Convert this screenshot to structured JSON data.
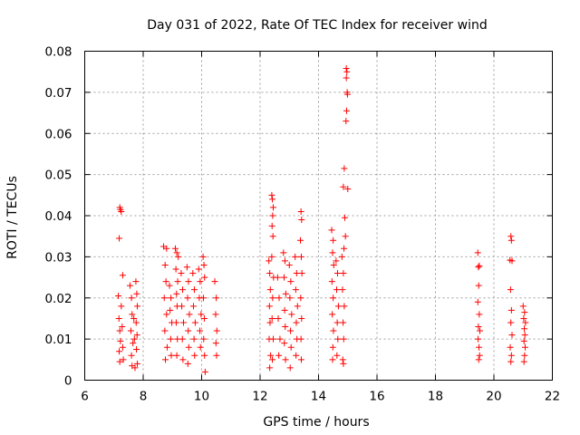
{
  "chart_data": {
    "type": "scatter",
    "title": "Day 031 of 2022, Rate Of TEC Index for receiver wind",
    "xlabel": "GPS time / hours",
    "ylabel": "ROTI / TECUs",
    "xlim": [
      6,
      22
    ],
    "ylim": [
      0,
      0.08
    ],
    "x_ticks": [
      6,
      8,
      10,
      12,
      14,
      16,
      18,
      20,
      22
    ],
    "x_tick_labels": [
      "6",
      "8",
      "10",
      "12",
      "14",
      "16",
      "18",
      "20",
      "22"
    ],
    "y_ticks": [
      0,
      0.01,
      0.02,
      0.03,
      0.04,
      0.05,
      0.06,
      0.07,
      0.08
    ],
    "y_tick_labels": [
      "0",
      "0.01",
      "0.02",
      "0.03",
      "0.04",
      "0.05",
      "0.06",
      "0.07",
      "0.08"
    ],
    "grid": true,
    "marker": "+",
    "color": "#ff0000",
    "series": [
      {
        "name": "ROTI",
        "points": [
          [
            7.2,
            0.042
          ],
          [
            7.22,
            0.0415
          ],
          [
            7.25,
            0.041
          ],
          [
            7.18,
            0.0345
          ],
          [
            7.3,
            0.0255
          ],
          [
            7.15,
            0.0205
          ],
          [
            7.17,
            0.015
          ],
          [
            7.2,
            0.012
          ],
          [
            7.22,
            0.0095
          ],
          [
            7.18,
            0.007
          ],
          [
            7.2,
            0.0045
          ],
          [
            7.25,
            0.018
          ],
          [
            7.28,
            0.013
          ],
          [
            7.3,
            0.008
          ],
          [
            7.32,
            0.005
          ],
          [
            7.55,
            0.023
          ],
          [
            7.6,
            0.02
          ],
          [
            7.62,
            0.016
          ],
          [
            7.58,
            0.012
          ],
          [
            7.65,
            0.009
          ],
          [
            7.6,
            0.006
          ],
          [
            7.62,
            0.0035
          ],
          [
            7.75,
            0.024
          ],
          [
            7.78,
            0.021
          ],
          [
            7.8,
            0.018
          ],
          [
            7.76,
            0.014
          ],
          [
            7.79,
            0.011
          ],
          [
            7.77,
            0.0075
          ],
          [
            7.8,
            0.004
          ],
          [
            7.68,
            0.015
          ],
          [
            7.7,
            0.01
          ],
          [
            7.72,
            0.003
          ],
          [
            8.7,
            0.0325
          ],
          [
            8.8,
            0.032
          ],
          [
            8.75,
            0.028
          ],
          [
            8.78,
            0.024
          ],
          [
            8.72,
            0.02
          ],
          [
            8.8,
            0.016
          ],
          [
            8.74,
            0.012
          ],
          [
            8.82,
            0.008
          ],
          [
            8.76,
            0.005
          ],
          [
            8.9,
            0.023
          ],
          [
            8.95,
            0.02
          ],
          [
            8.92,
            0.017
          ],
          [
            8.98,
            0.014
          ],
          [
            8.94,
            0.01
          ],
          [
            8.96,
            0.006
          ],
          [
            9.1,
            0.032
          ],
          [
            9.15,
            0.031
          ],
          [
            9.2,
            0.03
          ],
          [
            9.12,
            0.027
          ],
          [
            9.18,
            0.024
          ],
          [
            9.14,
            0.021
          ],
          [
            9.16,
            0.018
          ],
          [
            9.13,
            0.014
          ],
          [
            9.17,
            0.01
          ],
          [
            9.15,
            0.006
          ],
          [
            9.3,
            0.026
          ],
          [
            9.35,
            0.022
          ],
          [
            9.32,
            0.018
          ],
          [
            9.38,
            0.014
          ],
          [
            9.34,
            0.01
          ],
          [
            9.36,
            0.005
          ],
          [
            9.5,
            0.0275
          ],
          [
            9.55,
            0.024
          ],
          [
            9.52,
            0.02
          ],
          [
            9.58,
            0.016
          ],
          [
            9.54,
            0.012
          ],
          [
            9.56,
            0.008
          ],
          [
            9.53,
            0.004
          ],
          [
            9.7,
            0.026
          ],
          [
            9.75,
            0.022
          ],
          [
            9.72,
            0.018
          ],
          [
            9.78,
            0.014
          ],
          [
            9.74,
            0.01
          ],
          [
            9.76,
            0.006
          ],
          [
            9.9,
            0.027
          ],
          [
            9.95,
            0.024
          ],
          [
            9.92,
            0.02
          ],
          [
            9.98,
            0.016
          ],
          [
            9.94,
            0.012
          ],
          [
            9.96,
            0.008
          ],
          [
            10.05,
            0.03
          ],
          [
            10.08,
            0.028
          ],
          [
            10.1,
            0.025
          ],
          [
            10.06,
            0.02
          ],
          [
            10.09,
            0.015
          ],
          [
            10.07,
            0.01
          ],
          [
            10.1,
            0.006
          ],
          [
            10.12,
            0.002
          ],
          [
            10.45,
            0.024
          ],
          [
            10.5,
            0.02
          ],
          [
            10.48,
            0.016
          ],
          [
            10.52,
            0.012
          ],
          [
            10.49,
            0.009
          ],
          [
            10.51,
            0.006
          ],
          [
            12.3,
            0.029
          ],
          [
            12.33,
            0.026
          ],
          [
            12.35,
            0.022
          ],
          [
            12.32,
            0.018
          ],
          [
            12.34,
            0.014
          ],
          [
            12.31,
            0.01
          ],
          [
            12.36,
            0.006
          ],
          [
            12.33,
            0.003
          ],
          [
            12.4,
            0.045
          ],
          [
            12.42,
            0.044
          ],
          [
            12.45,
            0.042
          ],
          [
            12.43,
            0.04
          ],
          [
            12.41,
            0.0375
          ],
          [
            12.44,
            0.035
          ],
          [
            12.4,
            0.03
          ],
          [
            12.46,
            0.025
          ],
          [
            12.43,
            0.02
          ],
          [
            12.41,
            0.015
          ],
          [
            12.45,
            0.01
          ],
          [
            12.42,
            0.005
          ],
          [
            12.6,
            0.025
          ],
          [
            12.65,
            0.02
          ],
          [
            12.62,
            0.015
          ],
          [
            12.68,
            0.01
          ],
          [
            12.64,
            0.006
          ],
          [
            12.8,
            0.031
          ],
          [
            12.85,
            0.029
          ],
          [
            12.82,
            0.025
          ],
          [
            12.88,
            0.021
          ],
          [
            12.84,
            0.017
          ],
          [
            12.86,
            0.013
          ],
          [
            12.83,
            0.009
          ],
          [
            12.87,
            0.005
          ],
          [
            13.0,
            0.028
          ],
          [
            13.05,
            0.024
          ],
          [
            13.02,
            0.02
          ],
          [
            13.08,
            0.016
          ],
          [
            13.04,
            0.012
          ],
          [
            13.06,
            0.008
          ],
          [
            13.03,
            0.003
          ],
          [
            13.2,
            0.03
          ],
          [
            13.25,
            0.026
          ],
          [
            13.22,
            0.022
          ],
          [
            13.28,
            0.018
          ],
          [
            13.24,
            0.014
          ],
          [
            13.26,
            0.01
          ],
          [
            13.23,
            0.006
          ],
          [
            13.4,
            0.041
          ],
          [
            13.42,
            0.039
          ],
          [
            13.38,
            0.034
          ],
          [
            13.41,
            0.03
          ],
          [
            13.43,
            0.026
          ],
          [
            13.39,
            0.02
          ],
          [
            13.42,
            0.015
          ],
          [
            13.4,
            0.01
          ],
          [
            13.41,
            0.005
          ],
          [
            14.45,
            0.0365
          ],
          [
            14.5,
            0.034
          ],
          [
            14.48,
            0.031
          ],
          [
            14.52,
            0.028
          ],
          [
            14.46,
            0.024
          ],
          [
            14.5,
            0.02
          ],
          [
            14.47,
            0.016
          ],
          [
            14.51,
            0.012
          ],
          [
            14.49,
            0.008
          ],
          [
            14.48,
            0.005
          ],
          [
            14.6,
            0.029
          ],
          [
            14.65,
            0.026
          ],
          [
            14.62,
            0.022
          ],
          [
            14.68,
            0.018
          ],
          [
            14.64,
            0.014
          ],
          [
            14.66,
            0.01
          ],
          [
            14.63,
            0.006
          ],
          [
            14.8,
            0.03
          ],
          [
            14.85,
            0.026
          ],
          [
            14.82,
            0.022
          ],
          [
            14.88,
            0.018
          ],
          [
            14.84,
            0.014
          ],
          [
            14.86,
            0.01
          ],
          [
            14.83,
            0.005
          ],
          [
            14.85,
            0.004
          ],
          [
            14.85,
            0.047
          ],
          [
            14.9,
            0.0395
          ],
          [
            14.92,
            0.035
          ],
          [
            14.87,
            0.032
          ],
          [
            14.88,
            0.0515
          ],
          [
            14.95,
            0.0758
          ],
          [
            14.97,
            0.075
          ],
          [
            14.95,
            0.0735
          ],
          [
            14.98,
            0.07
          ],
          [
            14.99,
            0.0695
          ],
          [
            14.96,
            0.0655
          ],
          [
            14.94,
            0.063
          ],
          [
            15.0,
            0.0465
          ],
          [
            19.45,
            0.031
          ],
          [
            19.5,
            0.0278
          ],
          [
            19.47,
            0.0275
          ],
          [
            19.48,
            0.023
          ],
          [
            19.45,
            0.019
          ],
          [
            19.5,
            0.016
          ],
          [
            19.47,
            0.013
          ],
          [
            19.52,
            0.012
          ],
          [
            19.46,
            0.01
          ],
          [
            19.49,
            0.008
          ],
          [
            19.51,
            0.006
          ],
          [
            19.48,
            0.005
          ],
          [
            20.58,
            0.035
          ],
          [
            20.6,
            0.034
          ],
          [
            20.55,
            0.0292
          ],
          [
            20.62,
            0.029
          ],
          [
            20.57,
            0.022
          ],
          [
            20.6,
            0.017
          ],
          [
            20.58,
            0.014
          ],
          [
            20.62,
            0.011
          ],
          [
            20.56,
            0.008
          ],
          [
            20.6,
            0.006
          ],
          [
            20.58,
            0.0045
          ],
          [
            21.0,
            0.018
          ],
          [
            21.05,
            0.0165
          ],
          [
            21.02,
            0.015
          ],
          [
            21.08,
            0.014
          ],
          [
            21.04,
            0.0125
          ],
          [
            21.06,
            0.011
          ],
          [
            21.03,
            0.0095
          ],
          [
            21.07,
            0.008
          ],
          [
            21.05,
            0.006
          ],
          [
            21.03,
            0.0045
          ]
        ]
      }
    ]
  }
}
